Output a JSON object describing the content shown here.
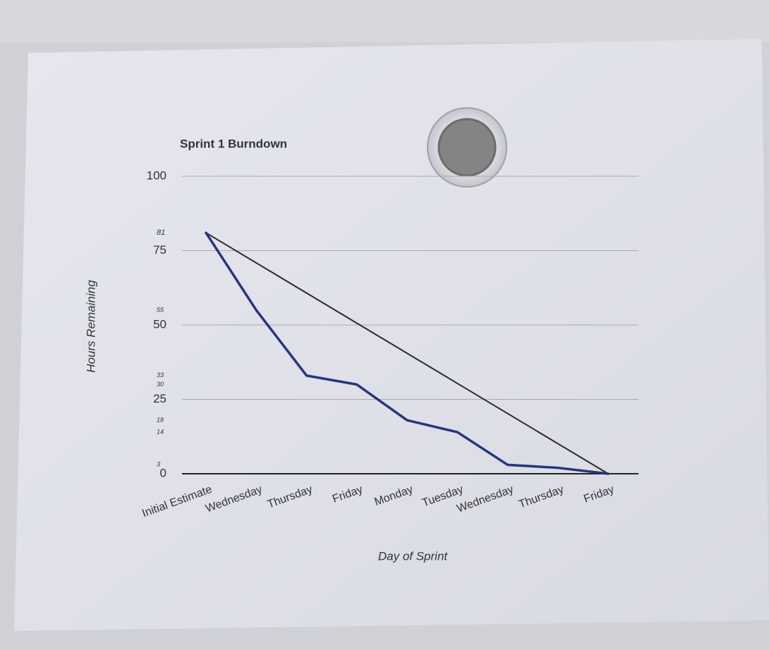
{
  "chart_data": {
    "type": "line",
    "title": "Sprint 1 Burndown",
    "x_label": "Day of Sprint",
    "y_label": "Hours Remaining",
    "categories": [
      "Initial Estimate",
      "Wednesday",
      "Thursday",
      "Friday",
      "Monday",
      "Tuesday",
      "Wednesday",
      "Thursday",
      "Friday"
    ],
    "series": [
      {
        "color": "#2a2a2a",
        "values": [
          81,
          null,
          null,
          null,
          null,
          null,
          null,
          null,
          0
        ]
      },
      {
        "color": "#27357e",
        "values": [
          81,
          55,
          33,
          30,
          18,
          14,
          3,
          2,
          0
        ]
      }
    ],
    "hand_marks": [
      81,
      55,
      33,
      30,
      18,
      14,
      3
    ],
    "ylim": [
      0,
      100
    ],
    "yticks": [
      0,
      25,
      50,
      75,
      100
    ],
    "grid": true
  }
}
